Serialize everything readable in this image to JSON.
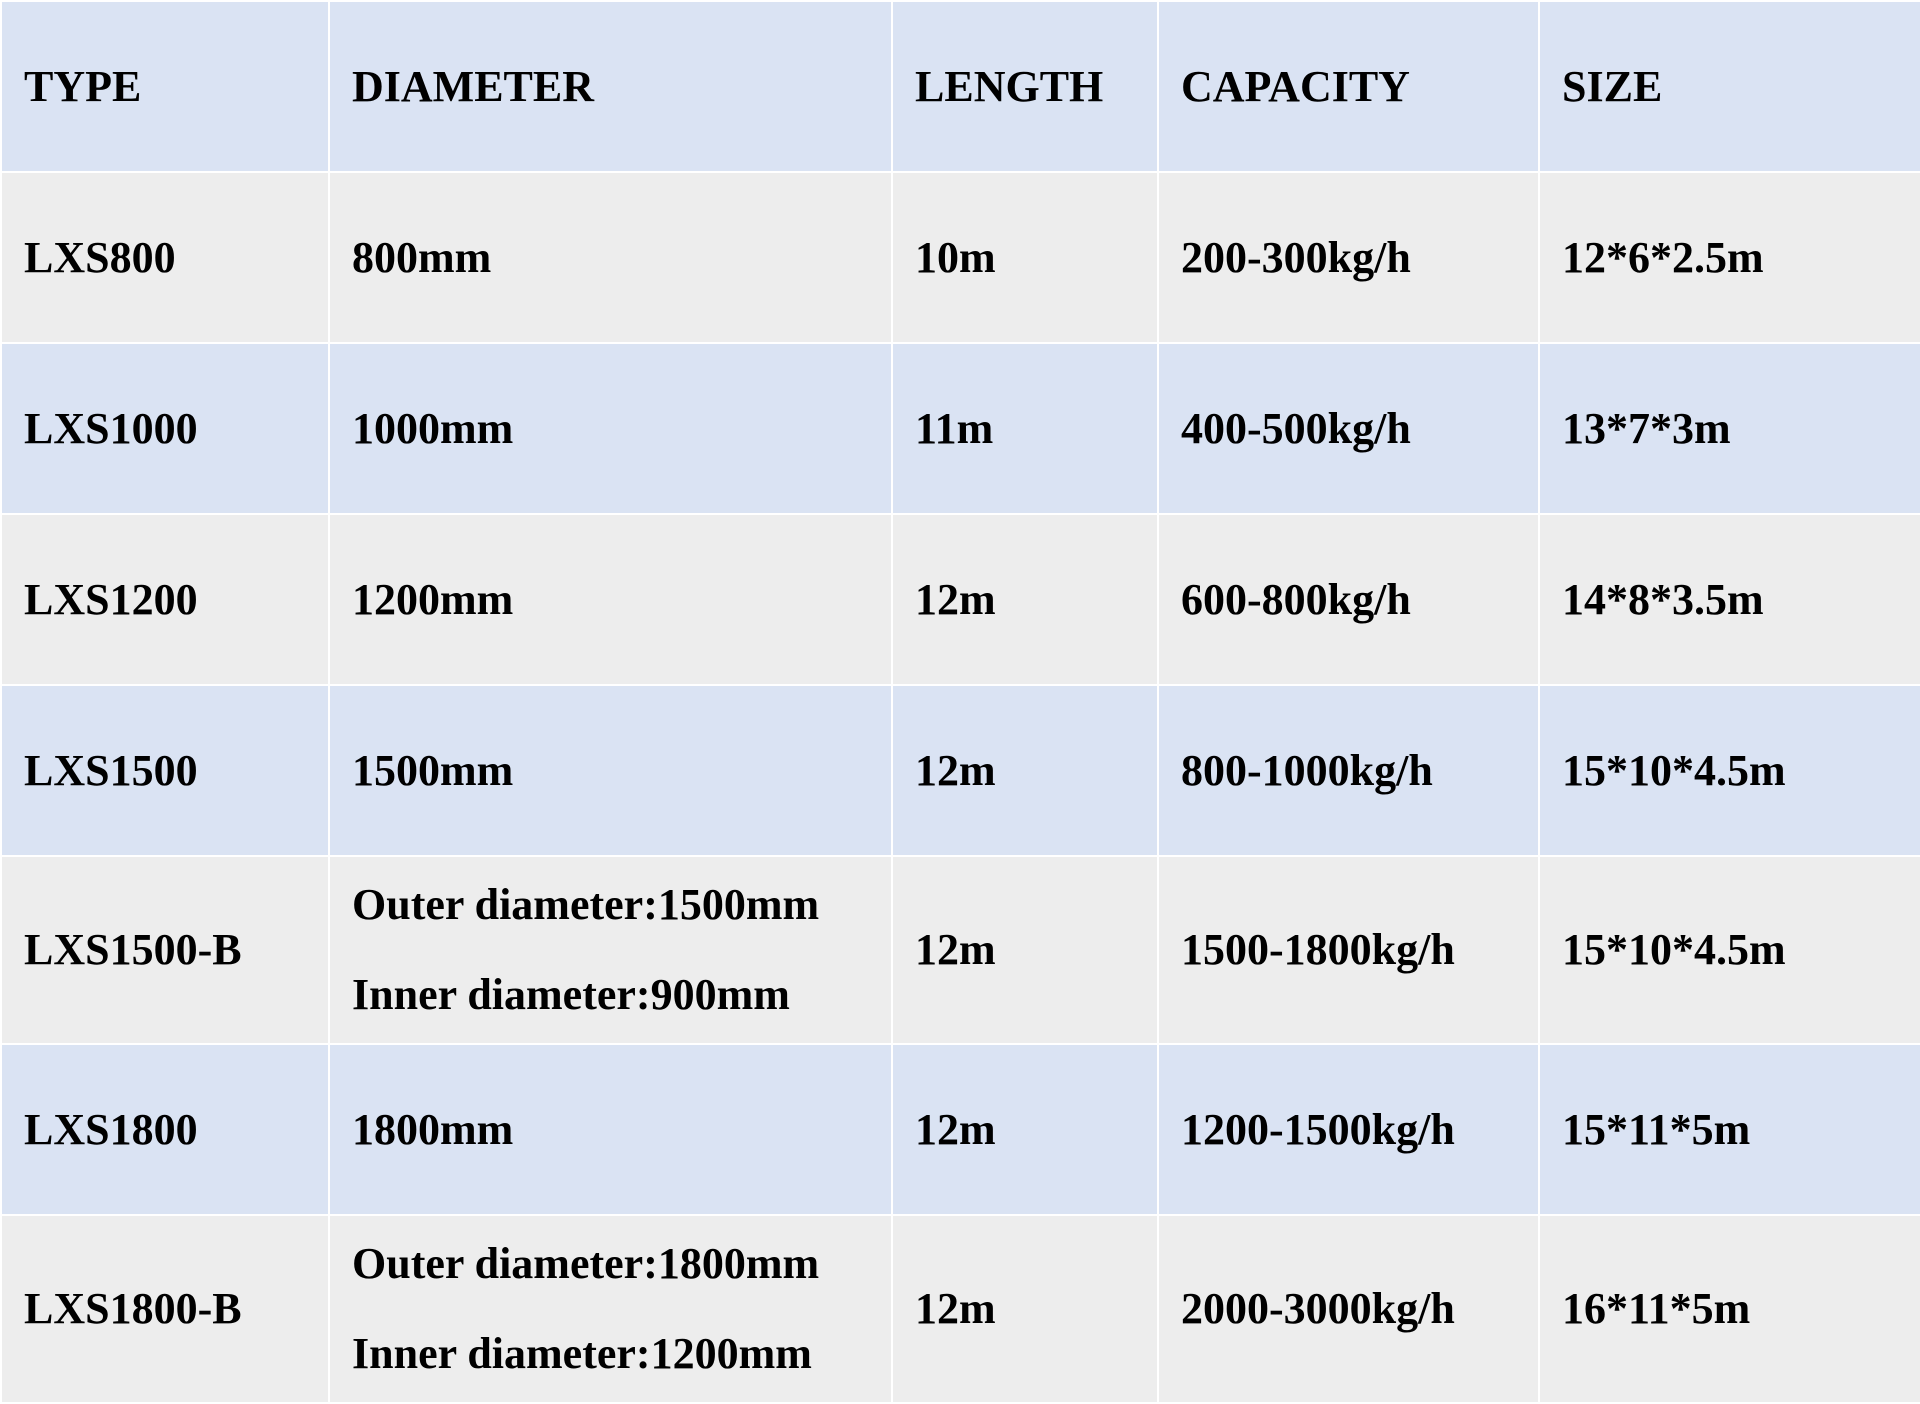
{
  "table": {
    "headers": [
      "TYPE",
      "DIAMETER",
      "LENGTH",
      "CAPACITY",
      "SIZE"
    ],
    "rows": [
      {
        "type": "LXS800",
        "diameter": [
          "800mm"
        ],
        "length": "10m",
        "capacity": "200-300kg/h",
        "size": "12*6*2.5m"
      },
      {
        "type": "LXS1000",
        "diameter": [
          "1000mm"
        ],
        "length": "11m",
        "capacity": "400-500kg/h",
        "size": "13*7*3m"
      },
      {
        "type": "LXS1200",
        "diameter": [
          "1200mm"
        ],
        "length": "12m",
        "capacity": "600-800kg/h",
        "size": "14*8*3.5m"
      },
      {
        "type": "LXS1500",
        "diameter": [
          "1500mm"
        ],
        "length": "12m",
        "capacity": "800-1000kg/h",
        "size": "15*10*4.5m"
      },
      {
        "type": "LXS1500-B",
        "diameter": [
          "Outer diameter:1500mm",
          "Inner diameter:900mm"
        ],
        "length": "12m",
        "capacity": "1500-1800kg/h",
        "size": "15*10*4.5m"
      },
      {
        "type": "LXS1800",
        "diameter": [
          "1800mm"
        ],
        "length": "12m",
        "capacity": "1200-1500kg/h",
        "size": "15*11*5m"
      },
      {
        "type": "LXS1800-B",
        "diameter": [
          "Outer diameter:1800mm",
          "Inner diameter:1200mm"
        ],
        "length": "12m",
        "capacity": "2000-3000kg/h",
        "size": "16*11*5m"
      }
    ]
  },
  "colors": {
    "header_row": "#DAE3F3",
    "alt_row_blue": "#DAE3F3",
    "alt_row_gray": "#EDEDED",
    "border": "#FFFFFF"
  }
}
